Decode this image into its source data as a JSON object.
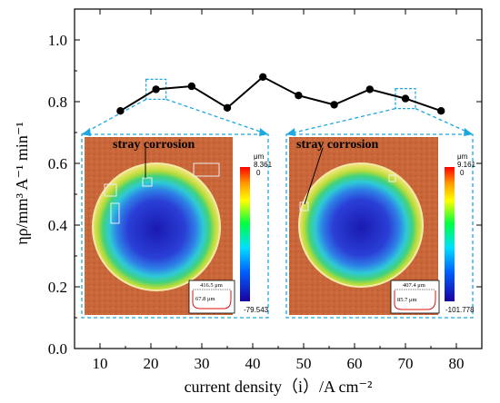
{
  "chart_data": {
    "type": "line",
    "x": [
      14,
      21,
      28,
      35,
      42,
      49,
      56,
      63,
      70,
      77
    ],
    "values": [
      0.77,
      0.84,
      0.85,
      0.78,
      0.88,
      0.82,
      0.79,
      0.84,
      0.81,
      0.77
    ],
    "xlim": [
      5,
      85
    ],
    "ylim": [
      0.0,
      1.1
    ],
    "xticks": [
      10,
      20,
      30,
      40,
      50,
      60,
      70,
      80
    ],
    "yticks": [
      0.0,
      0.2,
      0.4,
      0.6,
      0.8,
      1.0
    ],
    "xtick_labels": [
      "10",
      "20",
      "30",
      "40",
      "50",
      "60",
      "70",
      "80"
    ],
    "ytick_labels": [
      "0.0",
      "0.2",
      "0.4",
      "0.6",
      "0.8",
      "1.0"
    ],
    "xlabel": "current density（i）/A cm⁻²",
    "ylabel": "ηρ/mm³ A⁻¹ min⁻¹",
    "grid": false,
    "line_color": "#000000",
    "highlight_points_x": [
      21,
      70
    ],
    "highlight_color": "#1ea7e0",
    "insets": [
      {
        "label": "stray corrosion",
        "scale_unit": "μm",
        "scale_max": "8.361",
        "scale_zero": "0",
        "scale_min": "-79.543",
        "width_label": "416.5 μm",
        "depth_label": "67.8 μm"
      },
      {
        "label": "stray corrosion",
        "scale_unit": "μm",
        "scale_max": "9.161",
        "scale_zero": "0",
        "scale_min": "-101.778",
        "width_label": "407.4 μm",
        "depth_label": "85.7 μm"
      }
    ]
  }
}
